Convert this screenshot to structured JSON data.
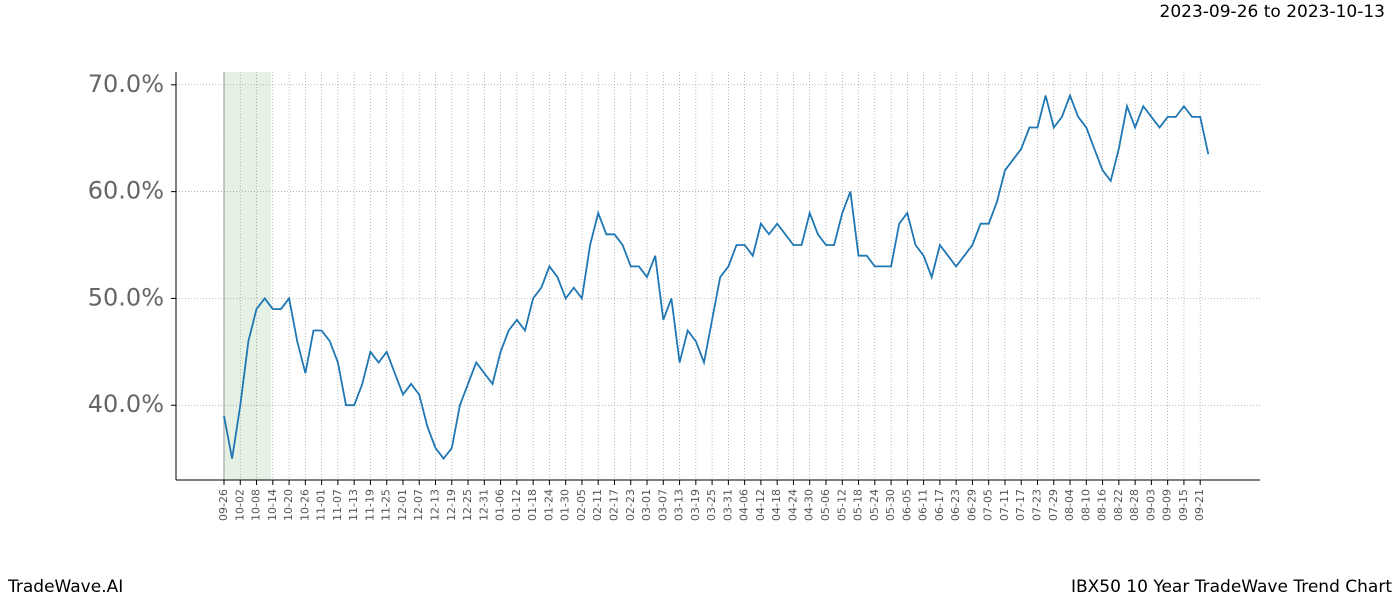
{
  "chart_data": {
    "type": "line",
    "title": "2023-09-26 to 2023-10-13",
    "footer_left": "TradeWave.AI",
    "footer_right": "IBX50 10 Year TradeWave Trend Chart",
    "categories": [
      "09-26",
      null,
      "10-02",
      null,
      "10-08",
      null,
      "10-14",
      null,
      "10-20",
      null,
      "10-26",
      null,
      "11-01",
      null,
      "11-07",
      null,
      "11-13",
      null,
      "11-19",
      null,
      "11-25",
      null,
      "12-01",
      null,
      "12-07",
      null,
      "12-13",
      null,
      "12-19",
      null,
      "12-25",
      null,
      "12-31",
      null,
      "01-06",
      null,
      "01-12",
      null,
      "01-18",
      null,
      "01-24",
      null,
      "01-30",
      null,
      "02-05",
      null,
      "02-11",
      null,
      "02-17",
      null,
      "02-23",
      null,
      "03-01",
      null,
      "03-07",
      null,
      "03-13",
      null,
      "03-19",
      null,
      "03-25",
      null,
      "03-31",
      null,
      "04-06",
      null,
      "04-12",
      null,
      "04-18",
      null,
      "04-24",
      null,
      "04-30",
      null,
      "05-06",
      null,
      "05-12",
      null,
      "05-18",
      null,
      "05-24",
      null,
      "05-30",
      null,
      "06-05",
      null,
      "06-11",
      null,
      "06-17",
      null,
      "06-23",
      null,
      "06-29",
      null,
      "07-05",
      null,
      "07-11",
      null,
      "07-17",
      null,
      "07-23",
      null,
      "07-29",
      null,
      "08-04",
      null,
      "08-10",
      null,
      "08-16",
      null,
      "08-22",
      null,
      "08-28",
      null,
      "09-03",
      null,
      "09-09",
      null,
      "09-15",
      null,
      "09-21",
      null
    ],
    "series": [
      {
        "color": "#1f77b4",
        "values": [
          39,
          35,
          40,
          46,
          49,
          50,
          49,
          49,
          50,
          46,
          43,
          47,
          47,
          46,
          44,
          40,
          40,
          42,
          45,
          44,
          45,
          43,
          41,
          42,
          41,
          38,
          36,
          35,
          36,
          40,
          42,
          44,
          43,
          42,
          45,
          47,
          48,
          47,
          50,
          51,
          53,
          52,
          50,
          51,
          50,
          55,
          58,
          56,
          56,
          55,
          53,
          53,
          52,
          54,
          48,
          50,
          44,
          47,
          46,
          44,
          48,
          52,
          53,
          55,
          55,
          54,
          57,
          56,
          57,
          56,
          55,
          55,
          58,
          56,
          55,
          55,
          58,
          60,
          54,
          54,
          53,
          53,
          53,
          57,
          58,
          55,
          54,
          52,
          55,
          54,
          53,
          54,
          55,
          57,
          57,
          59,
          62,
          63,
          64,
          66,
          66,
          69,
          66,
          67,
          69,
          67,
          66,
          64,
          62,
          61,
          64,
          68,
          66,
          68,
          67,
          66,
          67,
          67,
          68,
          67,
          67,
          63.5
        ]
      }
    ],
    "ylim": [
      33,
      71.2
    ],
    "yticks": [
      {
        "value": 40,
        "label": "40.0%"
      },
      {
        "value": 50,
        "label": "50.0%"
      },
      {
        "value": 60,
        "label": "60.0%"
      },
      {
        "value": 70,
        "label": "70.0%"
      }
    ],
    "grid": true
  }
}
